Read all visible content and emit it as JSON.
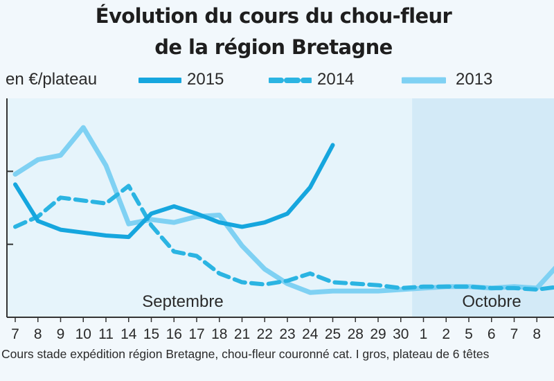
{
  "title_line1": "Évolution du cours du chou-fleur",
  "title_line2": "de la région Bretagne",
  "unit_label": "en €/plateau",
  "note": "Cours stade expédition région Bretagne, chou-fleur couronné cat. I gros, plateau de 6 têtes",
  "colors": {
    "s2015": "#16a6de",
    "s2014": "#2bb4e2",
    "s2013": "#7fd1f3",
    "band_september": "#e6f4fb",
    "band_october": "#d3eaf7",
    "axis": "#333333"
  },
  "chart_data": {
    "type": "line",
    "title": "Évolution du cours du chou-fleur de la région Bretagne",
    "ylabel": "en €/plateau",
    "categories": [
      "7",
      "8",
      "9",
      "10",
      "11",
      "14",
      "15",
      "16",
      "17",
      "18",
      "21",
      "22",
      "23",
      "24",
      "25",
      "28",
      "29",
      "30",
      "1",
      "2",
      "5",
      "6",
      "7",
      "8",
      ""
    ],
    "month_labels": [
      {
        "label": "Septembre",
        "start_index": 0,
        "end_index": 17
      },
      {
        "label": "Octobre",
        "start_index": 18,
        "end_index": 24
      }
    ],
    "ylim": [
      0,
      3
    ],
    "yticks": [
      1,
      2
    ],
    "grid": false,
    "legend_position": "top",
    "series": [
      {
        "name": "2015",
        "style": "solid-thick",
        "values": [
          1.82,
          1.32,
          1.2,
          1.16,
          1.12,
          1.1,
          1.42,
          1.52,
          1.42,
          1.3,
          1.24,
          1.3,
          1.42,
          1.78,
          2.36,
          null,
          null,
          null,
          null,
          null,
          null,
          null,
          null,
          null,
          null
        ]
      },
      {
        "name": "2014",
        "style": "dashed",
        "values": [
          1.24,
          1.38,
          1.64,
          1.6,
          1.56,
          1.8,
          1.26,
          0.9,
          0.84,
          0.6,
          0.48,
          0.45,
          0.5,
          0.6,
          0.48,
          0.46,
          0.44,
          0.4,
          0.42,
          0.42,
          0.42,
          0.4,
          0.4,
          0.38,
          0.42
        ]
      },
      {
        "name": "2013",
        "style": "solid-light",
        "values": [
          1.96,
          2.16,
          2.22,
          2.6,
          2.08,
          1.28,
          1.34,
          1.3,
          1.38,
          1.4,
          0.98,
          0.66,
          0.46,
          0.34,
          0.36,
          0.36,
          0.36,
          0.38,
          0.4,
          0.42,
          0.42,
          0.4,
          0.42,
          0.4,
          0.74
        ]
      }
    ]
  }
}
